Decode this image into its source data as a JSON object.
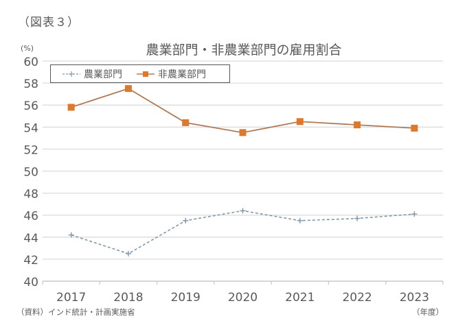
{
  "figure_label": "（図表３）",
  "source_note": "（資料）インド統計・計画実施省",
  "chart_data": {
    "type": "line",
    "title": "農業部門・非農業部門の雇用割合",
    "ylabel": "(%)",
    "xlabel": "（年度）",
    "x": [
      "2017",
      "2018",
      "2019",
      "2020",
      "2021",
      "2022",
      "2023"
    ],
    "ylim": [
      40,
      60
    ],
    "yticks": [
      40,
      42,
      44,
      46,
      48,
      50,
      52,
      54,
      56,
      58,
      60
    ],
    "grid": true,
    "legend_position": "top-left",
    "series": [
      {
        "name": "農業部門",
        "color": "#7f97aa",
        "line_style": "dashed",
        "marker": "plus",
        "values": [
          44.2,
          42.5,
          45.5,
          46.4,
          45.5,
          45.7,
          46.1
        ]
      },
      {
        "name": "非農業部門",
        "color": "#e0782a",
        "line_color": "#b07a55",
        "line_style": "solid",
        "marker": "square",
        "values": [
          55.8,
          57.5,
          54.4,
          53.5,
          54.5,
          54.2,
          53.9
        ]
      }
    ]
  }
}
